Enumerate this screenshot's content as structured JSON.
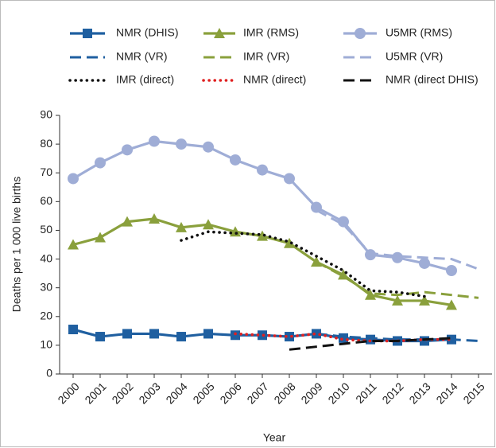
{
  "chart_data": {
    "type": "line",
    "y_label": "Deaths per 1 000 live births",
    "x_label": "Year",
    "x": [
      2000,
      2001,
      2002,
      2003,
      2004,
      2005,
      2006,
      2007,
      2008,
      2009,
      2010,
      2011,
      2012,
      2013,
      2014,
      2015
    ],
    "xlim": [
      1999.5,
      2015.5
    ],
    "xticks": [
      2000,
      2001,
      2002,
      2003,
      2004,
      2005,
      2006,
      2007,
      2008,
      2009,
      2010,
      2011,
      2012,
      2013,
      2014,
      2015
    ],
    "ylim": [
      0,
      90
    ],
    "yticks": [
      0,
      10,
      20,
      30,
      40,
      50,
      60,
      70,
      80,
      90
    ],
    "series": [
      {
        "name": "NMR (DHIS)",
        "color": "#1f5fa0",
        "dash": "solid",
        "marker": "square",
        "values": [
          15.5,
          13,
          14,
          14,
          13,
          14,
          13.5,
          13.5,
          13,
          14,
          12.5,
          12,
          11.5,
          11.5,
          12,
          null
        ]
      },
      {
        "name": "IMR (RMS)",
        "color": "#8aa03c",
        "dash": "solid",
        "marker": "triangle",
        "values": [
          45,
          47.5,
          53,
          54,
          51,
          52,
          49.5,
          48,
          45.5,
          39,
          34.5,
          27.5,
          25.5,
          25.5,
          24,
          null
        ]
      },
      {
        "name": "U5MR (RMS)",
        "color": "#9fadd6",
        "dash": "solid",
        "marker": "circle",
        "values": [
          68,
          73.5,
          78,
          81,
          80,
          79,
          74.5,
          71,
          68,
          58,
          53,
          41.5,
          40.5,
          38.5,
          36,
          null
        ]
      },
      {
        "name": "NMR (VR)",
        "color": "#1f5fa0",
        "dash": "dashed",
        "marker": "none",
        "values": [
          null,
          null,
          null,
          null,
          null,
          null,
          null,
          null,
          null,
          14,
          13,
          12.5,
          12,
          12,
          12,
          11.5
        ]
      },
      {
        "name": "IMR (VR)",
        "color": "#8aa03c",
        "dash": "dashed",
        "marker": "none",
        "values": [
          null,
          null,
          null,
          null,
          null,
          null,
          null,
          null,
          null,
          39,
          34,
          28,
          27.5,
          28.5,
          27.5,
          26.5
        ]
      },
      {
        "name": "U5MR (VR)",
        "color": "#9fadd6",
        "dash": "dashed",
        "marker": "none",
        "values": [
          null,
          null,
          null,
          null,
          null,
          null,
          null,
          null,
          null,
          57,
          52,
          42,
          41,
          40.5,
          40,
          36.5
        ]
      },
      {
        "name": "IMR (direct)",
        "color": "#111111",
        "dash": "dotted",
        "marker": "none",
        "values": [
          null,
          null,
          null,
          null,
          46.5,
          49.5,
          49,
          48.5,
          46,
          41,
          36,
          29,
          28.5,
          27,
          null,
          null
        ]
      },
      {
        "name": "NMR (direct)",
        "color": "#e02020",
        "dash": "dotted",
        "marker": "none",
        "values": [
          null,
          null,
          null,
          null,
          null,
          null,
          14,
          13.5,
          13,
          14,
          12,
          11.5,
          11.5,
          12,
          12,
          null
        ]
      },
      {
        "name": "NMR (direct DHIS)",
        "color": "#111111",
        "dash": "dashed",
        "marker": "none",
        "values": [
          null,
          null,
          null,
          null,
          null,
          null,
          null,
          null,
          8.5,
          9.5,
          10.5,
          11.5,
          11.5,
          12,
          12.5,
          null
        ]
      }
    ]
  }
}
